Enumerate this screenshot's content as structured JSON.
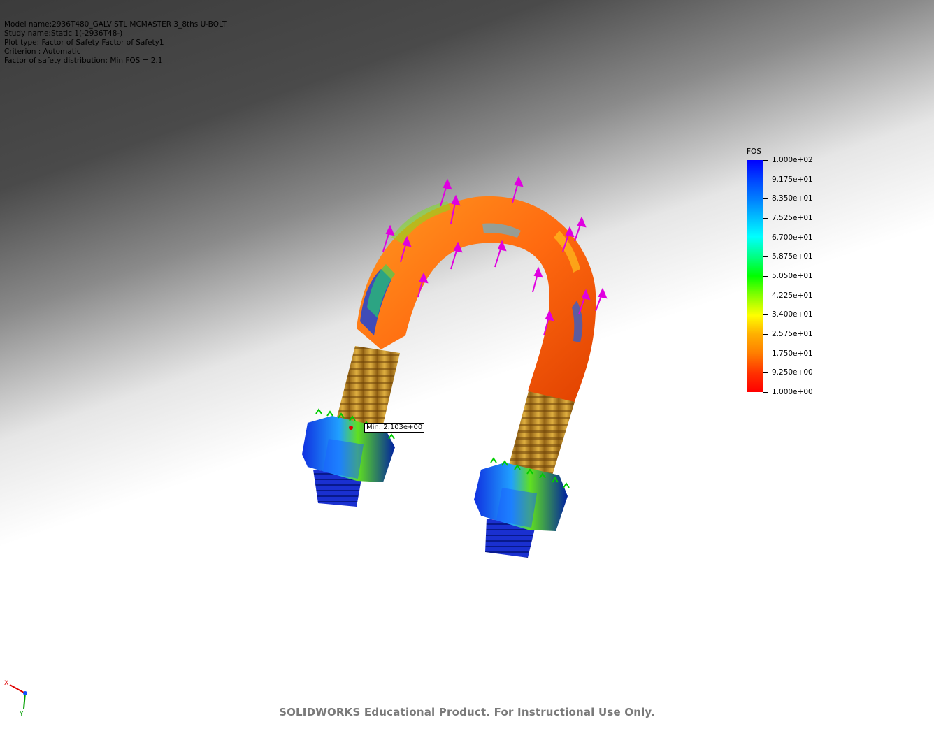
{
  "info": {
    "model_name": "Model name:2936T480_GALV STL MCMASTER 3_8ths U-BOLT",
    "study_name": "Study name:Static 1(-2936T48-)",
    "plot_type": "Plot type: Factor of Safety Factor of Safety1",
    "criterion": "Criterion : Automatic",
    "distribution": "Factor of safety distribution: Min FOS = 2.1"
  },
  "legend": {
    "title": "FOS",
    "labels": [
      "1.000e+02",
      "9.175e+01",
      "8.350e+01",
      "7.525e+01",
      "6.700e+01",
      "5.875e+01",
      "5.050e+01",
      "4.225e+01",
      "3.400e+01",
      "2.575e+01",
      "1.750e+01",
      "9.250e+00",
      "1.000e+00"
    ]
  },
  "probe": {
    "min_label": "Min: 2.103e+00"
  },
  "watermark": "SOLIDWORKS Educational Product. For Instructional Use Only.",
  "triad": {
    "x_label": "X",
    "y_label": "Y"
  },
  "colors": {
    "max": "#0000ff",
    "mid": "#00ff00",
    "min": "#ff0000",
    "load_arrow": "#e000e0",
    "fixture": "#00cc00"
  }
}
